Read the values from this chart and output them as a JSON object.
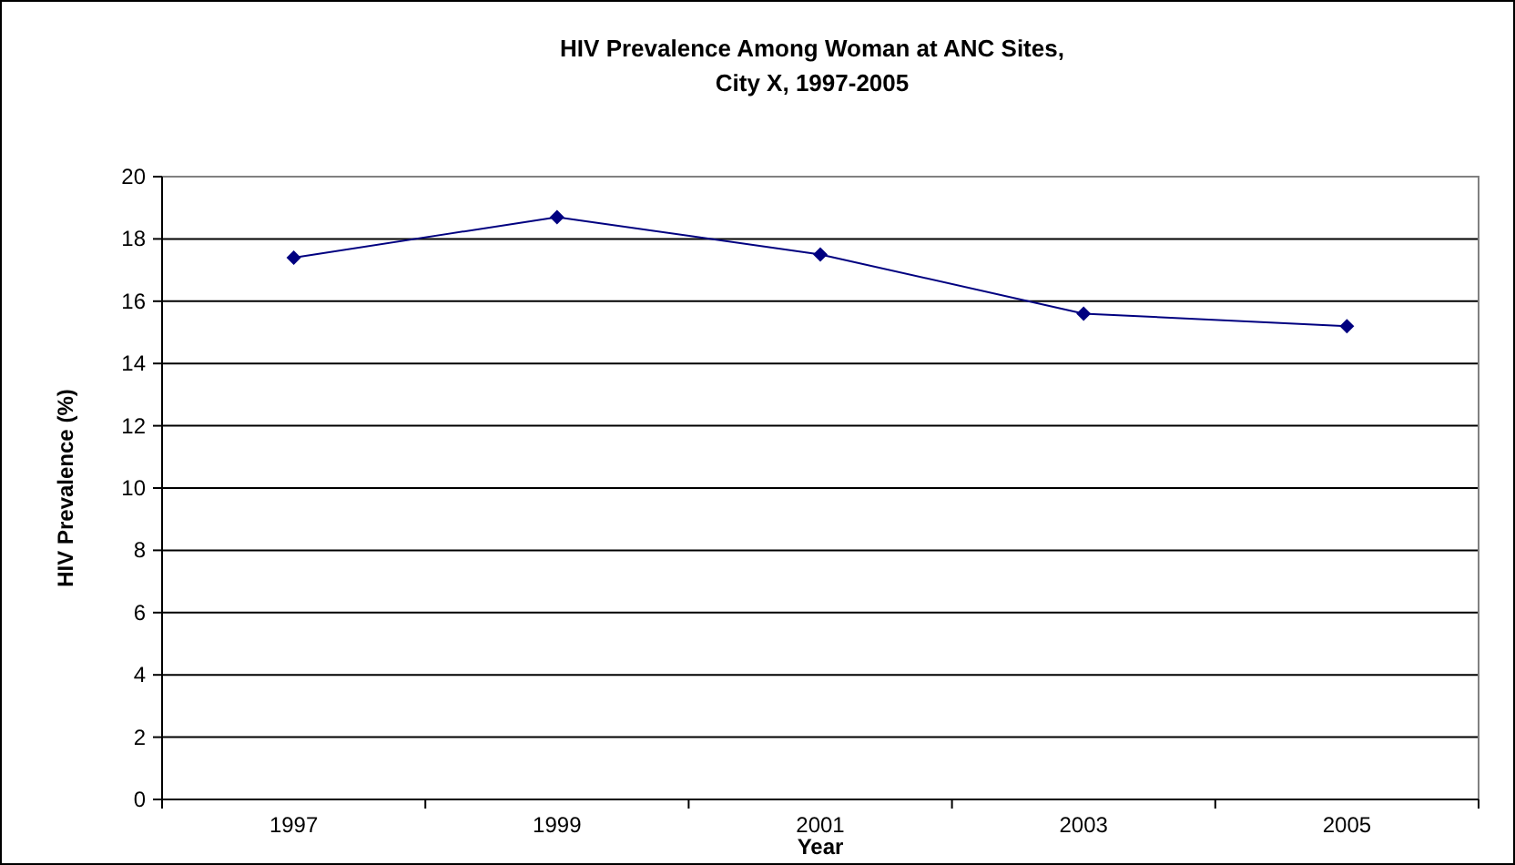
{
  "chart_data": {
    "type": "line",
    "title": "HIV Prevalence Among Woman at ANC Sites,\nCity X, 1997-2005",
    "xlabel": "Year",
    "ylabel": "HIV Prevalence (%)",
    "categories": [
      "1997",
      "1999",
      "2001",
      "2003",
      "2005"
    ],
    "series": [
      {
        "color": "#000080",
        "values": [
          17.4,
          18.7,
          17.5,
          15.6,
          15.2
        ]
      }
    ],
    "ylim": [
      0,
      20
    ],
    "yticks": [
      0,
      2,
      4,
      6,
      8,
      10,
      12,
      14,
      16,
      18,
      20
    ],
    "grid": "y",
    "marker": "diamond",
    "line_style": "solid"
  }
}
